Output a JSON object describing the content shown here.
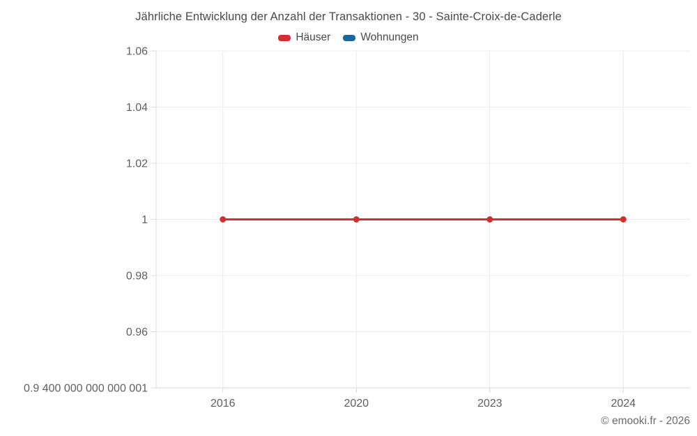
{
  "title": "Jährliche Entwicklung der Anzahl der Transaktionen - 30 - Sainte-Croix-de-Caderle",
  "legend": {
    "items": [
      {
        "label": "Häuser",
        "color": "#d32f2f"
      },
      {
        "label": "Wohnungen",
        "color": "#16699f"
      }
    ]
  },
  "footer": "© emooki.fr - 2026",
  "colors": {
    "grid": "#ececec",
    "axis": "#d9d9d9",
    "tick_label": "#5f5f5f",
    "title_text": "#4a4a4a",
    "haeuser_red": "#d32f2f",
    "wohnungen_blue": "#16699f"
  },
  "chart_data": {
    "type": "line",
    "title": "Jährliche Entwicklung der Anzahl der Transaktionen - 30 - Sainte-Croix-de-Caderle",
    "categories": [
      "2016",
      "2020",
      "2023",
      "2024"
    ],
    "series": [
      {
        "name": "Häuser",
        "color": "#d32f2f",
        "values": [
          1,
          1,
          1,
          1
        ]
      },
      {
        "name": "Wohnungen",
        "color": "#16699f",
        "values": []
      }
    ],
    "xlabel": "",
    "ylabel": "",
    "ylim": [
      0.9400000000000001,
      1.06
    ],
    "yticks": {
      "values": [
        1.06,
        1.04,
        1.02,
        1,
        0.98,
        0.96,
        0.9400000000000001
      ],
      "labels": [
        "1.06",
        "1.04",
        "1.02",
        "1",
        "0.98",
        "0.96",
        "0.9 400 000 000 000 001"
      ]
    },
    "grid": true,
    "legend_position": "top"
  }
}
